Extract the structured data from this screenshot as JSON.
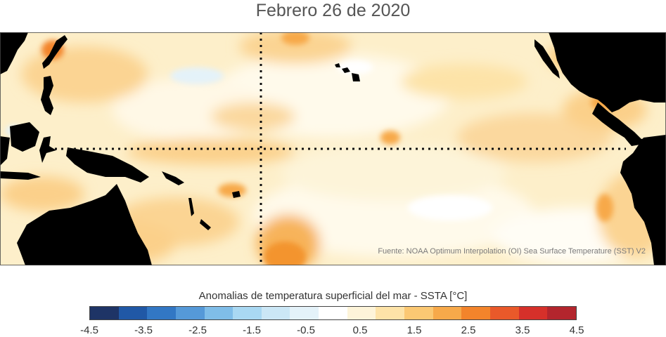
{
  "title": "Febrero 26 de 2020",
  "source": "Fuente: NOAA Optimum Interpolation (OI) Sea Surface Temperature (SST) V2",
  "colorbar": {
    "title": "Anomalias de temperatura superficial del mar - SSTA  [°C]",
    "colors": [
      "#1e3466",
      "#2058a6",
      "#3277c4",
      "#5599d8",
      "#7fbde8",
      "#a9d8f2",
      "#cbe7f6",
      "#e4f2f9",
      "#ffffff",
      "#fdf4d9",
      "#fde3a8",
      "#fbc873",
      "#f7a94a",
      "#f3842b",
      "#e9592a",
      "#d6302a",
      "#b3252d"
    ],
    "tick_labels": [
      "-4.5",
      "-3.5",
      "-2.5",
      "-1.5",
      "-0.5",
      "0.5",
      "1.5",
      "2.5",
      "3.5",
      "4.5"
    ],
    "tick_values": [
      -4.5,
      -3.5,
      -2.5,
      -1.5,
      -0.5,
      0.5,
      1.5,
      2.5,
      3.5,
      4.5
    ],
    "range": [
      -4.5,
      4.5
    ]
  }
}
